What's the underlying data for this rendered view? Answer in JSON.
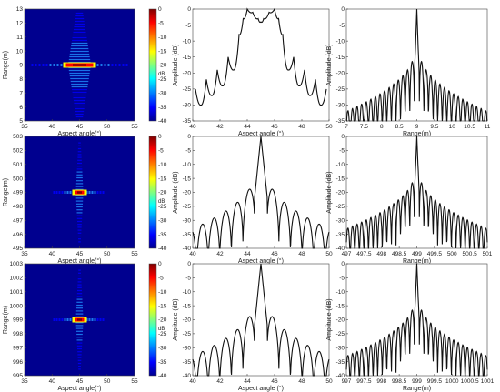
{
  "chart_data": [
    {
      "type": "heatmap",
      "row": 0,
      "xlabel": "Aspect angle(°)",
      "ylabel": "Range(m)",
      "xlim": [
        35,
        55
      ],
      "ylim": [
        5,
        13
      ],
      "xticks": [
        "35",
        "40",
        "45",
        "50",
        "55"
      ],
      "yticks": [
        "5",
        "6",
        "7",
        "8",
        "9",
        "10",
        "11",
        "12",
        "13"
      ],
      "peak": {
        "x": 45,
        "y": 9
      },
      "colorbar": {
        "ticks": [
          "0",
          "-5",
          "-10",
          "-15",
          "-20",
          "-25",
          "-30",
          "-35",
          "-40"
        ],
        "unit": "dB",
        "range": [
          -40,
          0
        ]
      },
      "colors": [
        "#00008f",
        "#0000ff",
        "#00ffff",
        "#ffff00",
        "#ff0000",
        "#800000"
      ]
    },
    {
      "type": "line",
      "row": 0,
      "xlabel": "Aspect angle (°)",
      "ylabel": "Amplitude (dB)",
      "xlim": [
        40,
        50
      ],
      "ylim": [
        -35,
        0
      ],
      "xticks": [
        "40",
        "42",
        "44",
        "46",
        "48",
        "50"
      ],
      "yticks": [
        "0",
        "-5",
        "-10",
        "-15",
        "-20",
        "-25",
        "-30",
        "-35"
      ],
      "lobes": [
        {
          "x": 40.2,
          "y": -25
        },
        {
          "x": 40.6,
          "y": -30
        },
        {
          "x": 41.0,
          "y": -22
        },
        {
          "x": 41.4,
          "y": -27
        },
        {
          "x": 41.8,
          "y": -19
        },
        {
          "x": 42.2,
          "y": -24
        },
        {
          "x": 42.6,
          "y": -15
        },
        {
          "x": 43.0,
          "y": -19
        },
        {
          "x": 43.4,
          "y": -8
        },
        {
          "x": 43.7,
          "y": -3
        },
        {
          "x": 44.0,
          "y": 0
        },
        {
          "x": 44.4,
          "y": -1
        },
        {
          "x": 44.8,
          "y": -3
        },
        {
          "x": 45.0,
          "y": -4
        },
        {
          "x": 45.2,
          "y": -3
        },
        {
          "x": 45.6,
          "y": -1
        },
        {
          "x": 46.0,
          "y": 0
        },
        {
          "x": 46.3,
          "y": -3
        },
        {
          "x": 46.6,
          "y": -8
        },
        {
          "x": 47.0,
          "y": -19
        },
        {
          "x": 47.4,
          "y": -15
        },
        {
          "x": 47.8,
          "y": -24
        },
        {
          "x": 48.2,
          "y": -19
        },
        {
          "x": 48.6,
          "y": -27
        },
        {
          "x": 49.0,
          "y": -22
        },
        {
          "x": 49.4,
          "y": -30
        },
        {
          "x": 49.8,
          "y": -25
        }
      ]
    },
    {
      "type": "line",
      "row": 0,
      "xlabel": "Range(m)",
      "ylabel": "Amplitude (dB)",
      "xlim": [
        7,
        11
      ],
      "ylim": [
        -35,
        0
      ],
      "xticks": [
        "7",
        "7.5",
        "8",
        "8.5",
        "9",
        "9.5",
        "10",
        "10.5",
        "11"
      ],
      "yticks": [
        "0",
        "-5",
        "-10",
        "-15",
        "-20",
        "-25",
        "-30",
        "-35"
      ],
      "peak": {
        "x": 9,
        "y": 0
      },
      "lobe_spacing": 0.13,
      "lobe_decay": [
        -13,
        -32
      ]
    },
    {
      "type": "heatmap",
      "row": 1,
      "xlabel": "Aspect angle(°)",
      "ylabel": "Range(m)",
      "xlim": [
        35,
        55
      ],
      "ylim": [
        495,
        503
      ],
      "xticks": [
        "35",
        "40",
        "45",
        "50",
        "55"
      ],
      "yticks": [
        "495",
        "496",
        "497",
        "498",
        "499",
        "500",
        "501",
        "502",
        "503"
      ],
      "peak": {
        "x": 45,
        "y": 499
      },
      "colorbar": {
        "ticks": [
          "0",
          "-5",
          "-10",
          "-15",
          "-20",
          "-25",
          "-30",
          "-35",
          "-40"
        ],
        "unit": "dB",
        "range": [
          -40,
          0
        ]
      },
      "colors": [
        "#00008f",
        "#0000ff",
        "#00ffff",
        "#ffff00",
        "#ff0000",
        "#800000"
      ]
    },
    {
      "type": "line",
      "row": 1,
      "xlabel": "Aspect angle (°)",
      "ylabel": "Amplitude (dB)",
      "xlim": [
        40,
        50
      ],
      "ylim": [
        -40,
        0
      ],
      "xticks": [
        "40",
        "42",
        "44",
        "46",
        "48",
        "50"
      ],
      "yticks": [
        "0",
        "-5",
        "-10",
        "-15",
        "-20",
        "-25",
        "-30",
        "-35",
        "-40"
      ],
      "peak": {
        "x": 45,
        "y": 0
      },
      "lobe_spacing": 0.85,
      "lobe_decay": [
        -13,
        -33
      ]
    },
    {
      "type": "line",
      "row": 1,
      "xlabel": "Range(m)",
      "ylabel": "Amplitude (dB)",
      "xlim": [
        497,
        501
      ],
      "ylim": [
        -40,
        0
      ],
      "xticks": [
        "497",
        "497.5",
        "498",
        "498.5",
        "499",
        "499.5",
        "500",
        "500.5",
        "501"
      ],
      "yticks": [
        "0",
        "-5",
        "-10",
        "-15",
        "-20",
        "-25",
        "-30",
        "-35",
        "-40"
      ],
      "peak": {
        "x": 499,
        "y": 0
      },
      "lobe_spacing": 0.13,
      "lobe_decay": [
        -13,
        -33
      ]
    },
    {
      "type": "heatmap",
      "row": 2,
      "xlabel": "Aspect angle(°)",
      "ylabel": "Range(m)",
      "xlim": [
        35,
        55
      ],
      "ylim": [
        995,
        1003
      ],
      "xticks": [
        "35",
        "40",
        "45",
        "50",
        "55"
      ],
      "yticks": [
        "995",
        "996",
        "997",
        "998",
        "999",
        "1000",
        "1001",
        "1002",
        "1003"
      ],
      "peak": {
        "x": 45,
        "y": 999
      },
      "colorbar": {
        "ticks": [
          "0",
          "-5",
          "-10",
          "-15",
          "-20",
          "-25",
          "-30",
          "-35",
          "-40"
        ],
        "unit": "dB",
        "range": [
          -40,
          0
        ]
      },
      "colors": [
        "#00008f",
        "#0000ff",
        "#00ffff",
        "#ffff00",
        "#ff0000",
        "#800000"
      ]
    },
    {
      "type": "line",
      "row": 2,
      "xlabel": "Aspect angle (°)",
      "ylabel": "Amplitude (dB)",
      "xlim": [
        40,
        50
      ],
      "ylim": [
        -40,
        0
      ],
      "xticks": [
        "40",
        "42",
        "44",
        "46",
        "48",
        "50"
      ],
      "yticks": [
        "0",
        "-5",
        "-10",
        "-15",
        "-20",
        "-25",
        "-30",
        "-35",
        "-40"
      ],
      "peak": {
        "x": 45,
        "y": 0
      },
      "lobe_spacing": 0.85,
      "lobe_decay": [
        -13,
        -33
      ]
    },
    {
      "type": "line",
      "row": 2,
      "xlabel": "Range(m)",
      "ylabel": "Amplitude (dB)",
      "xlim": [
        997,
        1001
      ],
      "ylim": [
        -40,
        0
      ],
      "xticks": [
        "997",
        "997.5",
        "998",
        "998.5",
        "999",
        "999.5",
        "1000",
        "1000.5",
        "1001"
      ],
      "yticks": [
        "0",
        "-5",
        "-10",
        "-15",
        "-20",
        "-25",
        "-30",
        "-35",
        "-40"
      ],
      "peak": {
        "x": 999,
        "y": 0
      },
      "lobe_spacing": 0.13,
      "lobe_decay": [
        -13,
        -33
      ]
    }
  ]
}
